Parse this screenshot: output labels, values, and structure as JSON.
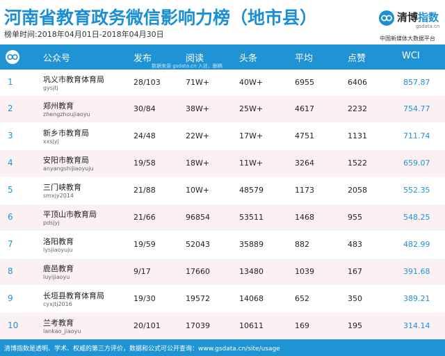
{
  "header": {
    "title": "河南省教育政务微信影响力榜（地市县）",
    "period": "榜单时间:2018年04月01日-2018年04月30日"
  },
  "brand": {
    "name_part1": "清博",
    "name_part2": "指数",
    "domain": "gsdata.cn",
    "tagline": "中国新媒体大数据平台"
  },
  "table": {
    "headers": {
      "account": "公众号",
      "published": "发布",
      "reads": "阅读",
      "headline": "头条",
      "average": "平均",
      "likes": "点赞",
      "wci": "WCI"
    },
    "watermark": "数据来源 gsdata.cn 入驻、删稿",
    "rows": [
      {
        "rank": "1",
        "name": "巩义市教育体育局",
        "account": "gysjtj",
        "published": "28/103",
        "reads": "71W+",
        "headline": "40W+",
        "average": "6955",
        "likes": "6406",
        "wci": "857.87"
      },
      {
        "rank": "2",
        "name": "郑州教育",
        "account": "zhengzhoujiaoyu",
        "published": "30/84",
        "reads": "38W+",
        "headline": "25W+",
        "average": "4617",
        "likes": "2232",
        "wci": "754.77"
      },
      {
        "rank": "3",
        "name": "新乡市教育局",
        "account": "xxsjyj",
        "published": "24/48",
        "reads": "22W+",
        "headline": "17W+",
        "average": "4751",
        "likes": "1131",
        "wci": "711.74"
      },
      {
        "rank": "4",
        "name": "安阳市教育局",
        "account": "anyangshijiaoyuju",
        "published": "19/58",
        "reads": "18W+",
        "headline": "11W+",
        "average": "3264",
        "likes": "1522",
        "wci": "659.07"
      },
      {
        "rank": "5",
        "name": "三门峡教育",
        "account": "smxjy2014",
        "published": "21/88",
        "reads": "10W+",
        "headline": "48579",
        "average": "1173",
        "likes": "2058",
        "wci": "552.35"
      },
      {
        "rank": "6",
        "name": "平顶山市教育局",
        "account": "pdsjyj",
        "published": "21/66",
        "reads": "96854",
        "headline": "53511",
        "average": "1468",
        "likes": "955",
        "wci": "548.25"
      },
      {
        "rank": "7",
        "name": "洛阳教育",
        "account": "lysjiaoyuju",
        "published": "19/59",
        "reads": "52043",
        "headline": "35889",
        "average": "882",
        "likes": "483",
        "wci": "482.99"
      },
      {
        "rank": "8",
        "name": "鹿邑教育",
        "account": "luyijiaoyu",
        "published": "9/17",
        "reads": "17660",
        "headline": "13480",
        "average": "1039",
        "likes": "167",
        "wci": "391.68"
      },
      {
        "rank": "9",
        "name": "长垣县教育体育局",
        "account": "cyxjtj2016",
        "published": "19/30",
        "reads": "19572",
        "headline": "14068",
        "average": "652",
        "likes": "350",
        "wci": "389.21"
      },
      {
        "rank": "10",
        "name": "兰考教育",
        "account": "lankao_jiaoyu",
        "published": "20/101",
        "reads": "17039",
        "headline": "10611",
        "average": "169",
        "likes": "195",
        "wci": "314.14"
      }
    ]
  },
  "footer": {
    "text": "清博指数是透明、学术、权威的第三方评价，数据和公式可公开查询：www.gsdata.cn/site/usage"
  },
  "colors": {
    "accent": "#1f93d4",
    "row_alt": "#fbf0f2"
  }
}
